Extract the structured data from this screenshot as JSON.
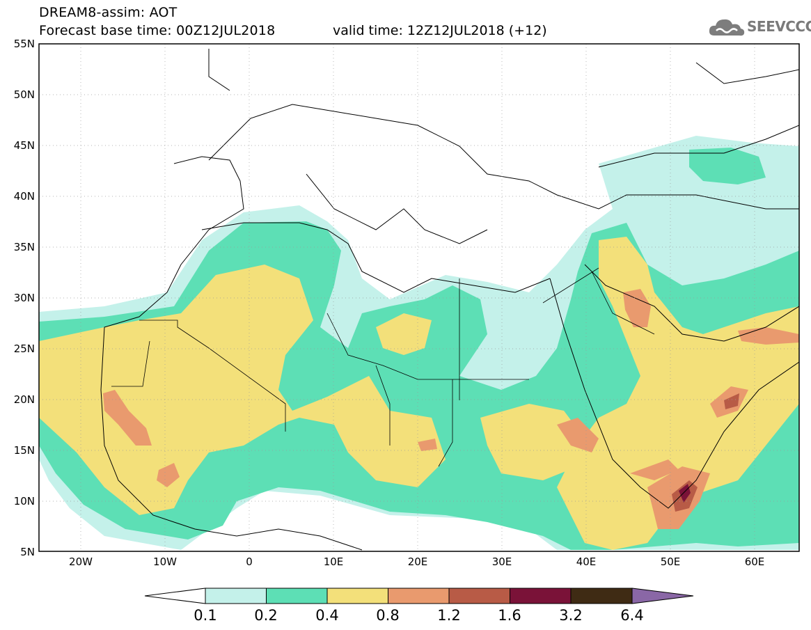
{
  "header": {
    "title_line1": "DREAM8-assim: AOT",
    "title_line2": "Forecast base time: 00Z12JUL2018",
    "valid_time": "valid time: 12Z12JUL2018 (+12)",
    "logo_text": "SEEVCCC"
  },
  "map": {
    "variable": "AOT",
    "model": "DREAM8-assim",
    "lon_range": [
      -25,
      65
    ],
    "lat_range": [
      5,
      55
    ],
    "lat_ticks": [
      "55N",
      "50N",
      "45N",
      "40N",
      "35N",
      "30N",
      "25N",
      "20N",
      "15N",
      "10N",
      "5N"
    ],
    "lon_ticks": [
      "20W",
      "10W",
      "0",
      "10E",
      "20E",
      "30E",
      "40E",
      "50E",
      "60E"
    ]
  },
  "colorbar": {
    "levels": [
      "0.1",
      "0.2",
      "0.4",
      "0.8",
      "1.2",
      "1.6",
      "3.2",
      "6.4"
    ],
    "colors": [
      "#ffffff",
      "#c4f1ea",
      "#5ddfb5",
      "#f3e07a",
      "#e99a6e",
      "#b85b46",
      "#7a1238",
      "#3f2b14",
      "#8a67a6"
    ]
  }
}
